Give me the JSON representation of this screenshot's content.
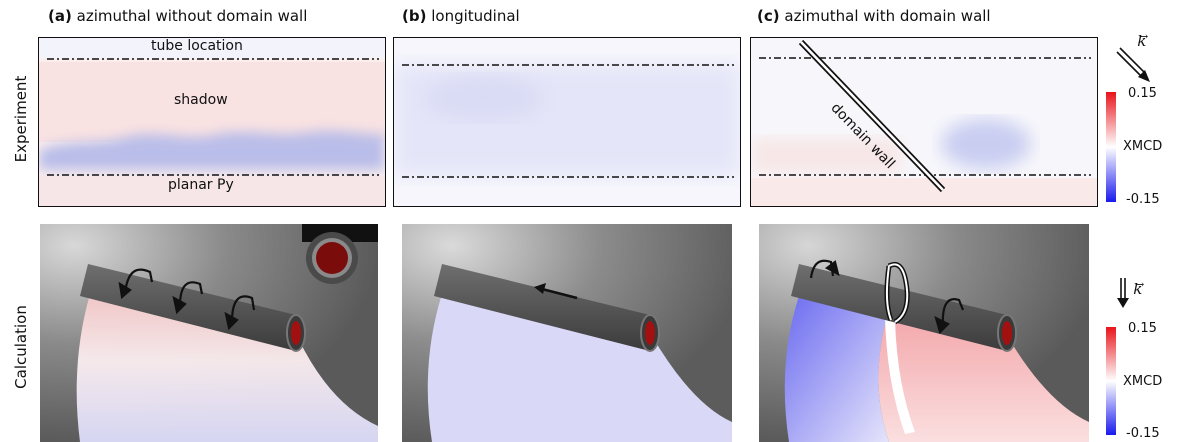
{
  "columns": [
    {
      "tag": "(a)",
      "title": "azimuthal without domain wall"
    },
    {
      "tag": "(b)",
      "title": "longitudinal"
    },
    {
      "tag": "(c)",
      "title": "azimuthal with domain wall"
    }
  ],
  "rows": {
    "experiment": "Experiment",
    "calculation": "Calculation"
  },
  "annotations": {
    "tube_location": "tube location",
    "shadow": "shadow",
    "planar_py": "planar Py",
    "domain_wall": "domain wall"
  },
  "beam_label": "k",
  "colorbar": {
    "max": "0.15",
    "min": "-0.15",
    "label": "XMCD",
    "colors": {
      "max": "#e8141b",
      "mid": "#ffffff",
      "min": "#1a1aee"
    }
  }
}
